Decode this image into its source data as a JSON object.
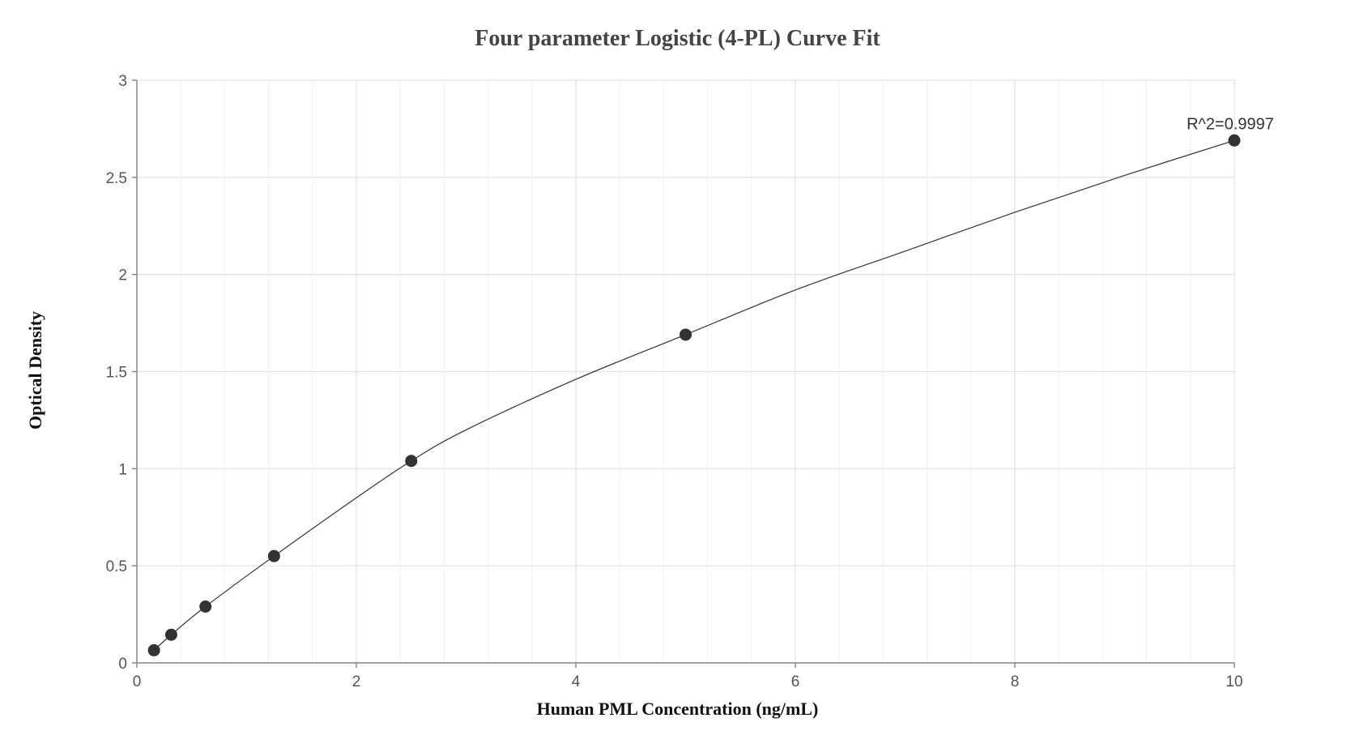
{
  "chart_data": {
    "type": "scatter",
    "title": "Four parameter Logistic (4-PL) Curve Fit",
    "xlabel": "Human PML Concentration (ng/mL)",
    "ylabel": "Optical Density",
    "xlim": [
      0,
      10
    ],
    "ylim": [
      0,
      3
    ],
    "x_ticks": [
      "0",
      "2",
      "4",
      "6",
      "8",
      "10"
    ],
    "y_ticks": [
      "0",
      "0.5",
      "1",
      "1.5",
      "2",
      "2.5",
      "3"
    ],
    "grid": true,
    "points": {
      "x": [
        0.156,
        0.313,
        0.625,
        1.25,
        2.5,
        5,
        10
      ],
      "y": [
        0.065,
        0.145,
        0.29,
        0.55,
        1.04,
        1.69,
        2.69
      ]
    },
    "fit_curve": {
      "x": [
        0.156,
        0.313,
        0.625,
        1.25,
        2.0,
        2.5,
        3.0,
        4.0,
        5.0,
        6.0,
        7.0,
        8.0,
        9.0,
        10.0
      ],
      "y": [
        0.065,
        0.145,
        0.29,
        0.55,
        0.85,
        1.04,
        1.2,
        1.46,
        1.69,
        1.92,
        2.12,
        2.32,
        2.51,
        2.69
      ]
    },
    "annotation": "R^2=0.9997",
    "colors": {
      "points": "#333333",
      "curve": "#333333",
      "grid_major": "#e0e0ee",
      "grid_minor": "#f1f1f6",
      "axis": "#888888"
    }
  }
}
